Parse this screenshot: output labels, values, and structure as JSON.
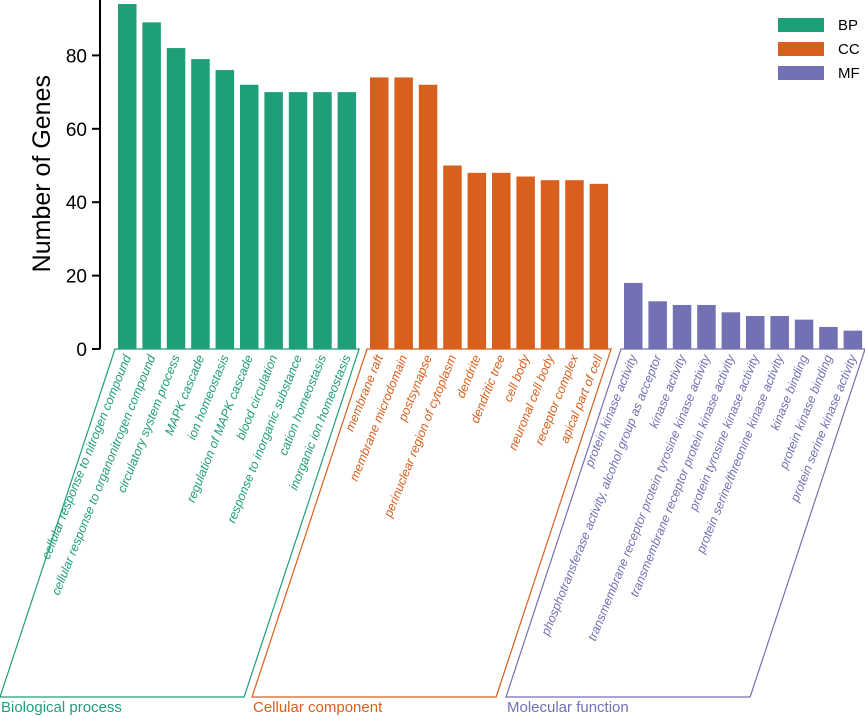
{
  "chart_data": {
    "type": "bar",
    "title": "",
    "xlabel": "",
    "ylabel": "Number of Genes",
    "ylim": [
      0,
      95
    ],
    "yticks": [
      0,
      20,
      40,
      60,
      80
    ],
    "grid": false,
    "legend_position": "top-right",
    "colors": {
      "BP": "#1f9e7a",
      "CC": "#d95f1c",
      "MF": "#7271b3"
    },
    "series": [
      {
        "name": "BP",
        "group_label": "Biological process",
        "categories": [
          "cellular response to nitrogen compound",
          "cellular response to organonitrogen compound",
          "circulatory system process",
          "MAPK cascade",
          "ion homeostasis",
          "regulation of MAPK cascade",
          "blood circulation",
          "response to inorganic substance",
          "cation homeostasis",
          "inorganic ion homeostasis"
        ],
        "values": [
          94,
          89,
          82,
          79,
          76,
          72,
          70,
          70,
          70,
          70
        ]
      },
      {
        "name": "CC",
        "group_label": "Cellular component",
        "categories": [
          "membrane raft",
          "membrane microdomain",
          "postsynapse",
          "perinuclear region of cytoplasm",
          "dendrite",
          "dendritic tree",
          "cell body",
          "neuronal cell body",
          "receptor complex",
          "apical part of cell"
        ],
        "values": [
          74,
          74,
          72,
          50,
          48,
          48,
          47,
          46,
          46,
          45
        ]
      },
      {
        "name": "MF",
        "group_label": "Molecular function",
        "categories": [
          "protein kinase activity",
          "phosphotransferase activity, alcohol group as acceptor",
          "kinase activity",
          "transmembrane receptor protein tyrosine kinase activity",
          "transmembrane receptor protein kinase activity",
          "protein tyrosine kinase activity",
          "protein serine/threonine kinase activity",
          "kinase binding",
          "protein kinase binding",
          "protein serine kinase activity"
        ],
        "values": [
          18,
          13,
          12,
          12,
          10,
          9,
          9,
          8,
          6,
          5
        ]
      }
    ]
  }
}
